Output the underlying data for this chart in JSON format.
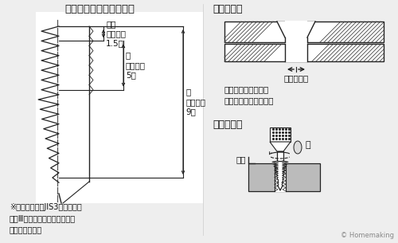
{
  "bg_color": "#eeeeee",
  "title_left": "喰付き部の長さ（目安）",
  "title_right1": "面取り作業",
  "title_right2": "タップ作業",
  "label_age": "上げ\n（＃３）\n1.5山",
  "label_naka": "中\n（＃２）\n5山",
  "label_saki": "先\n（＃１）\n9山",
  "label_neji": "ねじ下穴径",
  "label_chamfer": "面取りはドリル又は\n面取りカッター使用。",
  "label_oil": "油",
  "label_chokukaku": "直角",
  "label_notice": "※このタップはJIS3級（等級記\n　号Ⅲ）精度に基づいて制作し\n　ております。",
  "label_homemaking": "© Homemaking",
  "font_color": "#111111",
  "line_color": "#222222",
  "hatch_color": "#444444"
}
